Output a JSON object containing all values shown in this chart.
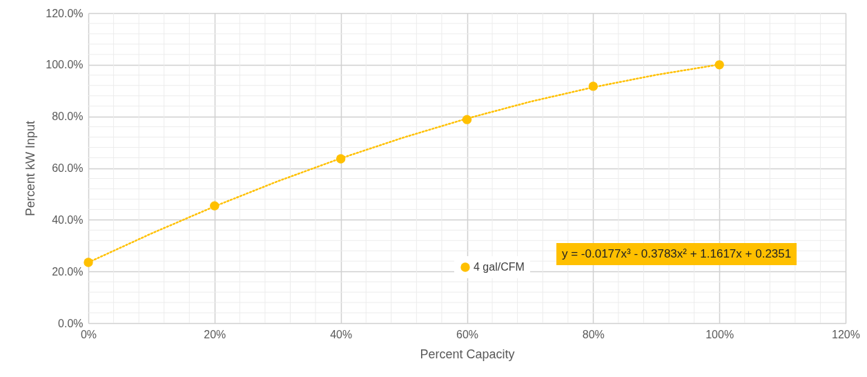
{
  "chart_data": {
    "type": "scatter",
    "xlabel": "Percent Capacity",
    "ylabel": "Percent kW Input",
    "x": [
      0,
      20,
      40,
      60,
      80,
      100
    ],
    "series": [
      {
        "name": "4 gal/CFM",
        "type": "scatter",
        "marker": "circle",
        "color": "#ffc000",
        "values": [
          23.5,
          45.4,
          63.6,
          78.8,
          91.7,
          100
        ]
      },
      {
        "type": "line",
        "line_style": "dotted",
        "marker": "none",
        "color": "#ffc000",
        "x": [
          0,
          10,
          20,
          30,
          40,
          50,
          60,
          70,
          80,
          90,
          100
        ],
        "values": [
          23.5,
          34.7,
          45.2,
          54.9,
          63.8,
          71.9,
          79.2,
          85.7,
          91.3,
          96.1,
          100.1
        ]
      }
    ],
    "xlim": [
      0,
      120
    ],
    "xticks": [
      {
        "value": 0,
        "label": "0%"
      },
      {
        "value": 4,
        "label": null
      },
      {
        "value": 8,
        "label": null
      },
      {
        "value": 12,
        "label": null
      },
      {
        "value": 16,
        "label": null
      },
      {
        "value": 20,
        "label": "20%"
      },
      {
        "value": 24,
        "label": null
      },
      {
        "value": 28,
        "label": null
      },
      {
        "value": 32,
        "label": null
      },
      {
        "value": 36,
        "label": null
      },
      {
        "value": 40,
        "label": "40%"
      },
      {
        "value": 44,
        "label": null
      },
      {
        "value": 48,
        "label": null
      },
      {
        "value": 52,
        "label": null
      },
      {
        "value": 56,
        "label": null
      },
      {
        "value": 60,
        "label": "60%"
      },
      {
        "value": 64,
        "label": null
      },
      {
        "value": 68,
        "label": null
      },
      {
        "value": 72,
        "label": null
      },
      {
        "value": 76,
        "label": null
      },
      {
        "value": 80,
        "label": "80%"
      },
      {
        "value": 84,
        "label": null
      },
      {
        "value": 88,
        "label": null
      },
      {
        "value": 92,
        "label": null
      },
      {
        "value": 96,
        "label": null
      },
      {
        "value": 100,
        "label": "100%"
      },
      {
        "value": 104,
        "label": null
      },
      {
        "value": 108,
        "label": null
      },
      {
        "value": 112,
        "label": null
      },
      {
        "value": 116,
        "label": null
      },
      {
        "value": 120,
        "label": "120%"
      }
    ],
    "ylim": [
      0,
      120
    ],
    "yticks": [
      {
        "value": 0,
        "label": "0.0%"
      },
      {
        "value": 4,
        "label": null
      },
      {
        "value": 8,
        "label": null
      },
      {
        "value": 12,
        "label": null
      },
      {
        "value": 16,
        "label": null
      },
      {
        "value": 20,
        "label": "20.0%"
      },
      {
        "value": 24,
        "label": null
      },
      {
        "value": 28,
        "label": null
      },
      {
        "value": 32,
        "label": null
      },
      {
        "value": 36,
        "label": null
      },
      {
        "value": 40,
        "label": "40.0%"
      },
      {
        "value": 44,
        "label": null
      },
      {
        "value": 48,
        "label": null
      },
      {
        "value": 52,
        "label": null
      },
      {
        "value": 56,
        "label": null
      },
      {
        "value": 60,
        "label": "60.0%"
      },
      {
        "value": 64,
        "label": null
      },
      {
        "value": 68,
        "label": null
      },
      {
        "value": 72,
        "label": null
      },
      {
        "value": 76,
        "label": null
      },
      {
        "value": 80,
        "label": "80.0%"
      },
      {
        "value": 84,
        "label": null
      },
      {
        "value": 88,
        "label": null
      },
      {
        "value": 92,
        "label": null
      },
      {
        "value": 96,
        "label": null
      },
      {
        "value": 100,
        "label": "100.0%"
      },
      {
        "value": 104,
        "label": null
      },
      {
        "value": 108,
        "label": null
      },
      {
        "value": 112,
        "label": null
      },
      {
        "value": 116,
        "label": null
      },
      {
        "value": 120,
        "label": "120.0%"
      }
    ],
    "grid": true,
    "legend": "bottom right",
    "annotations": [
      "y = -0.0177x³ - 0.3783x² + 1.1617x + 0.2351"
    ]
  }
}
